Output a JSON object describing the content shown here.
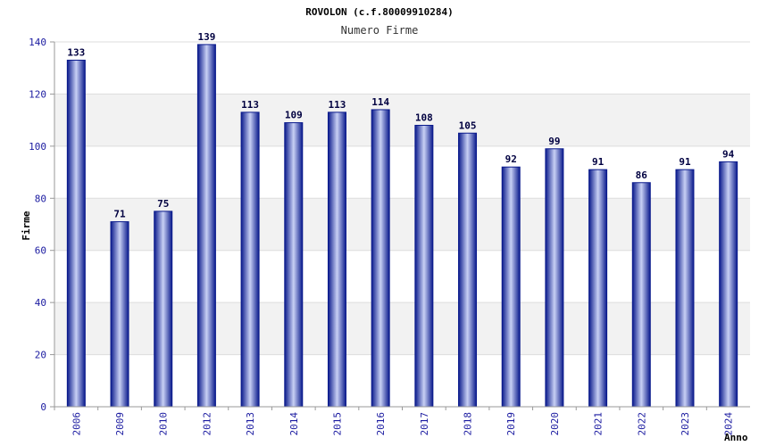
{
  "chart_data": {
    "type": "bar",
    "title": "ROVOLON (c.f.80009910284)",
    "subtitle": "Numero Firme",
    "xlabel": "Anno",
    "ylabel": "Firme",
    "ylim": [
      0,
      140
    ],
    "yticks": [
      0,
      20,
      40,
      60,
      80,
      100,
      120,
      140
    ],
    "categories": [
      "2006",
      "2009",
      "2010",
      "2012",
      "2013",
      "2014",
      "2015",
      "2016",
      "2017",
      "2018",
      "2019",
      "2020",
      "2021",
      "2022",
      "2023",
      "2024"
    ],
    "values": [
      133,
      71,
      75,
      139,
      113,
      109,
      113,
      114,
      108,
      105,
      92,
      99,
      91,
      86,
      91,
      94
    ],
    "grid": true,
    "colors": {
      "bar_edge": "#0a1a8c",
      "bar_light": "#c8d0f4",
      "band": "#f2f2f2",
      "gridline": "#dddddd"
    }
  }
}
